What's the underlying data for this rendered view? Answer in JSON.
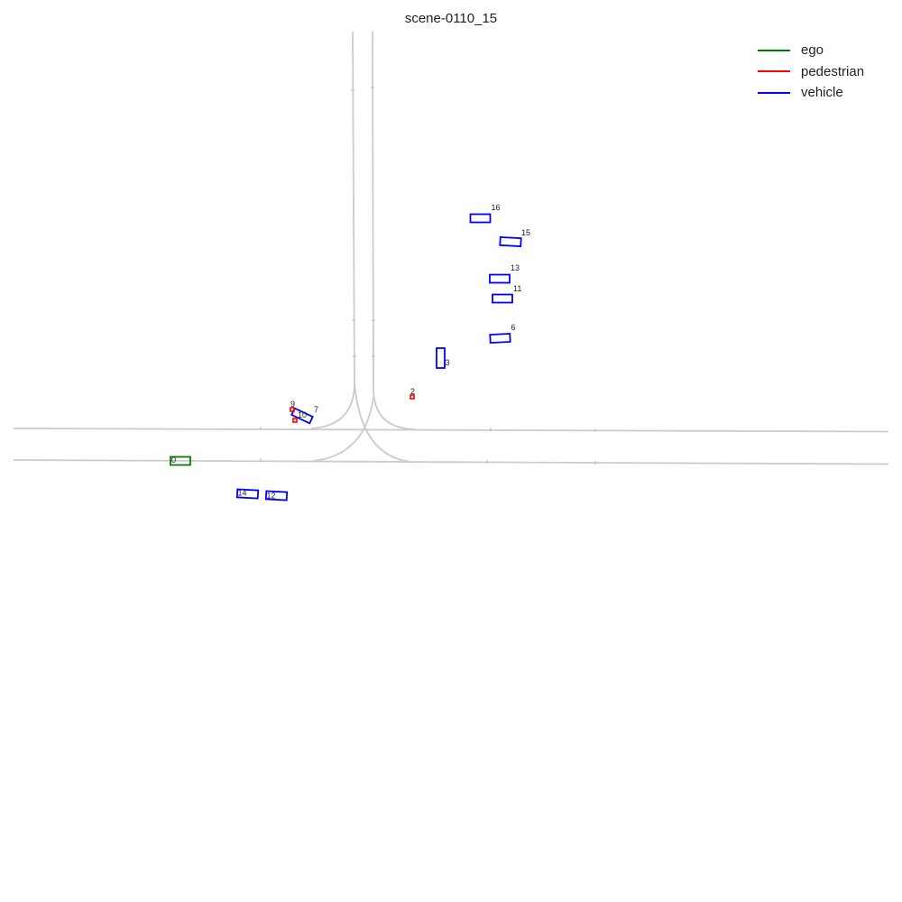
{
  "title": "scene-0110_15",
  "colors": {
    "ego": "#008000",
    "pedestrian": "#ff0000",
    "vehicle": "#0000ff",
    "road": "#cccccc"
  },
  "legend": [
    {
      "label": "ego",
      "type": "ego"
    },
    {
      "label": "pedestrian",
      "type": "pedestrian"
    },
    {
      "label": "vehicle",
      "type": "vehicle"
    }
  ],
  "agents": [
    {
      "id": "0",
      "type": "ego"
    },
    {
      "id": "2",
      "type": "pedestrian"
    },
    {
      "id": "3",
      "type": "vehicle"
    },
    {
      "id": "6",
      "type": "vehicle"
    },
    {
      "id": "7",
      "type": "vehicle"
    },
    {
      "id": "9",
      "type": "pedestrian"
    },
    {
      "id": "10",
      "type": "pedestrian"
    },
    {
      "id": "11",
      "type": "vehicle"
    },
    {
      "id": "12",
      "type": "vehicle"
    },
    {
      "id": "13",
      "type": "vehicle"
    },
    {
      "id": "14",
      "type": "vehicle"
    },
    {
      "id": "15",
      "type": "vehicle"
    },
    {
      "id": "16",
      "type": "vehicle"
    }
  ]
}
